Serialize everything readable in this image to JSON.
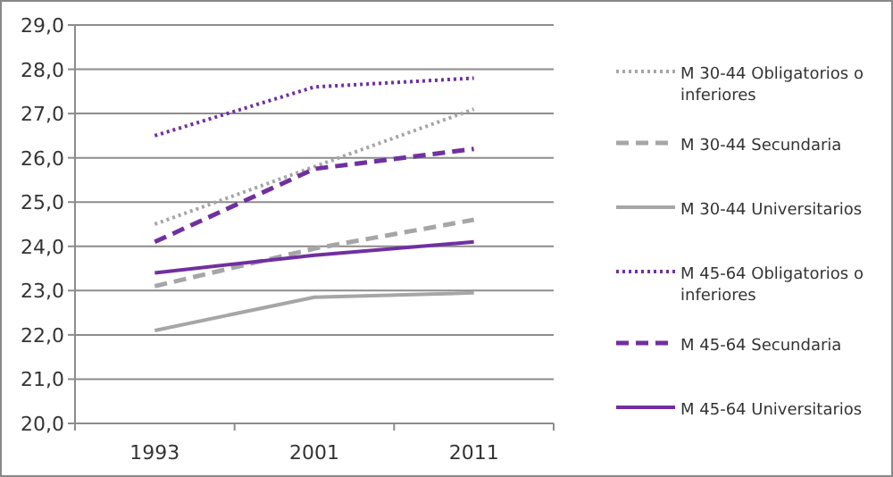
{
  "chart_data": {
    "type": "line",
    "categories": [
      "1993",
      "2001",
      "2011"
    ],
    "series": [
      {
        "name": "M 30-44 Obligatorios o inferiores",
        "color": "#a6a6a6",
        "line_style": "dotted",
        "values": [
          24.5,
          25.8,
          27.1
        ]
      },
      {
        "name": "M 30-44 Secundaria",
        "color": "#a6a6a6",
        "line_style": "dashed",
        "values": [
          23.1,
          23.95,
          24.6
        ]
      },
      {
        "name": "M 30-44 Universitarios",
        "color": "#a6a6a6",
        "line_style": "solid",
        "values": [
          22.1,
          22.85,
          22.95
        ]
      },
      {
        "name": "M 45-64 Obligatorios o inferiores",
        "color": "#7030a0",
        "line_style": "dotted",
        "values": [
          26.5,
          27.6,
          27.8
        ]
      },
      {
        "name": "M 45-64 Secundaria",
        "color": "#7030a0",
        "line_style": "dashed",
        "values": [
          24.1,
          25.75,
          26.2
        ]
      },
      {
        "name": "M 45-64 Universitarios",
        "color": "#7030a0",
        "line_style": "solid",
        "values": [
          23.4,
          23.8,
          24.1
        ]
      }
    ],
    "ylim": [
      20,
      29
    ],
    "yticks": [
      {
        "value": 20,
        "label": "20,0"
      },
      {
        "value": 21,
        "label": "21,0"
      },
      {
        "value": 22,
        "label": "22,0"
      },
      {
        "value": 23,
        "label": "23,0"
      },
      {
        "value": 24,
        "label": "24,0"
      },
      {
        "value": 25,
        "label": "25,0"
      },
      {
        "value": 26,
        "label": "26,0"
      },
      {
        "value": 27,
        "label": "27,0"
      },
      {
        "value": 28,
        "label": "28,0"
      },
      {
        "value": 29,
        "label": "29,0"
      }
    ],
    "grid": "y",
    "legend": "right",
    "marker": "none"
  }
}
